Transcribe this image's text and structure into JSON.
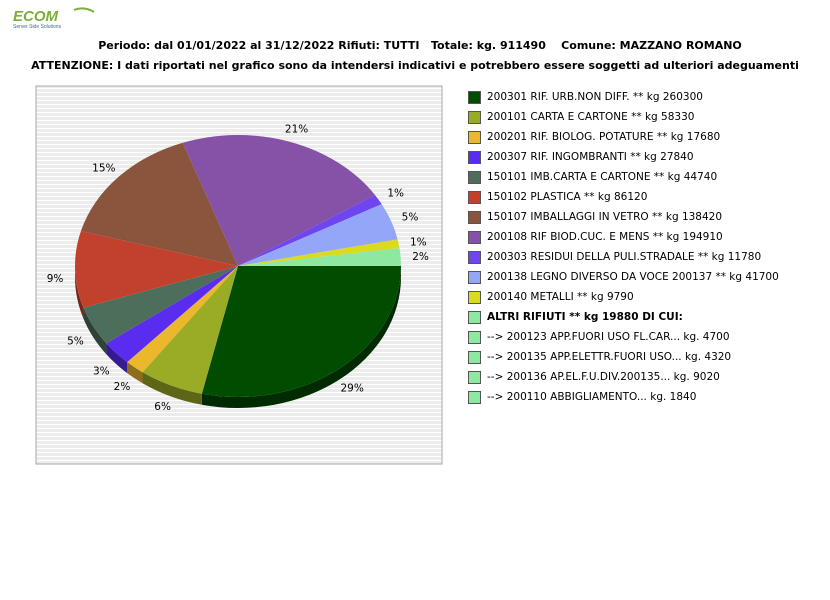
{
  "logo": {
    "brand": "ECOM",
    "tagline": "Server Side Solutions"
  },
  "header": {
    "line1": "Periodo: dal 01/01/2022 al 31/12/2022 Rifiuti: TUTTI   Totale: kg. 911490    Comune: MAZZANO ROMANO",
    "line2": "ATTENZIONE: I dati riportati nel grafico sono da intendersi indicativi e potrebbero essere soggetti ad ulteriori adeguamenti"
  },
  "chart_data": {
    "type": "pie",
    "title": "",
    "start_angle_deg": 0,
    "direction": "clockwise",
    "slices": [
      {
        "label": "200301 RIF. URB.NON DIFF. ** kg 260300",
        "value": 260300,
        "pct_label": "29%",
        "color": "#004d00",
        "side_color": "#002a00"
      },
      {
        "label": "200101 CARTA E CARTONE ** kg 58330",
        "value": 58330,
        "pct_label": "6%",
        "color": "#9aab25",
        "side_color": "#5c6616"
      },
      {
        "label": "200201 RIF. BIOLOG. POTATURE ** kg 17680",
        "value": 17680,
        "pct_label": "2%",
        "color": "#eab72d",
        "side_color": "#8c6d1b"
      },
      {
        "label": "200307 RIF. INGOMBRANTI ** kg 27840",
        "value": 27840,
        "pct_label": "3%",
        "color": "#5a2cf0",
        "side_color": "#361a90"
      },
      {
        "label": "150101 IMB.CARTA E CARTONE ** kg 44740",
        "value": 44740,
        "pct_label": "5%",
        "color": "#4e6e5c",
        "side_color": "#2f4237"
      },
      {
        "label": "150102 PLASTICA ** kg 86120",
        "value": 86120,
        "pct_label": "9%",
        "color": "#c2412c",
        "side_color": "#74271a"
      },
      {
        "label": "150107 IMBALLAGGI IN VETRO ** kg 138420",
        "value": 138420,
        "pct_label": "15%",
        "color": "#8b543c",
        "side_color": "#533224"
      },
      {
        "label": "200108 RIF BIOD.CUC. E MENS ** kg 194910",
        "value": 194910,
        "pct_label": "21%",
        "color": "#8552a8",
        "side_color": "#503165"
      },
      {
        "label": "200303 RESIDUI DELLA PULI.STRADALE ** kg 11780",
        "value": 11780,
        "pct_label": "1%",
        "color": "#6e46f0",
        "side_color": "#422a90"
      },
      {
        "label": "200138 LEGNO DIVERSO DA VOCE 200137 ** kg 41700",
        "value": 41700,
        "pct_label": "5%",
        "color": "#93a6f7",
        "side_color": "#586494"
      },
      {
        "label": "200140 METALLI ** kg 9790",
        "value": 9790,
        "pct_label": "1%",
        "color": "#dada1e",
        "side_color": "#838312"
      },
      {
        "label": "ALTRI RIFIUTI ** kg 19880 DI CUI:",
        "value": 19880,
        "pct_label": "2%",
        "color": "#8fe8a1",
        "side_color": "#568b61",
        "bold": true
      }
    ],
    "legend_sub_items": [
      {
        "label": "-->  200123 APP.FUORI USO FL.CAR... kg. 4700",
        "color": "#8fe8a1"
      },
      {
        "label": "-->  200135 APP.ELETTR.FUORI USO... kg. 4320",
        "color": "#8fe8a1"
      },
      {
        "label": "-->  200136 AP.EL.F.U.DIV.200135... kg. 9020",
        "color": "#8fe8a1"
      },
      {
        "label": "-->  200110 ABBIGLIAMENTO... kg. 1840",
        "color": "#8fe8a1"
      }
    ],
    "legend_position": "right",
    "plot_background": "striped-grey"
  }
}
